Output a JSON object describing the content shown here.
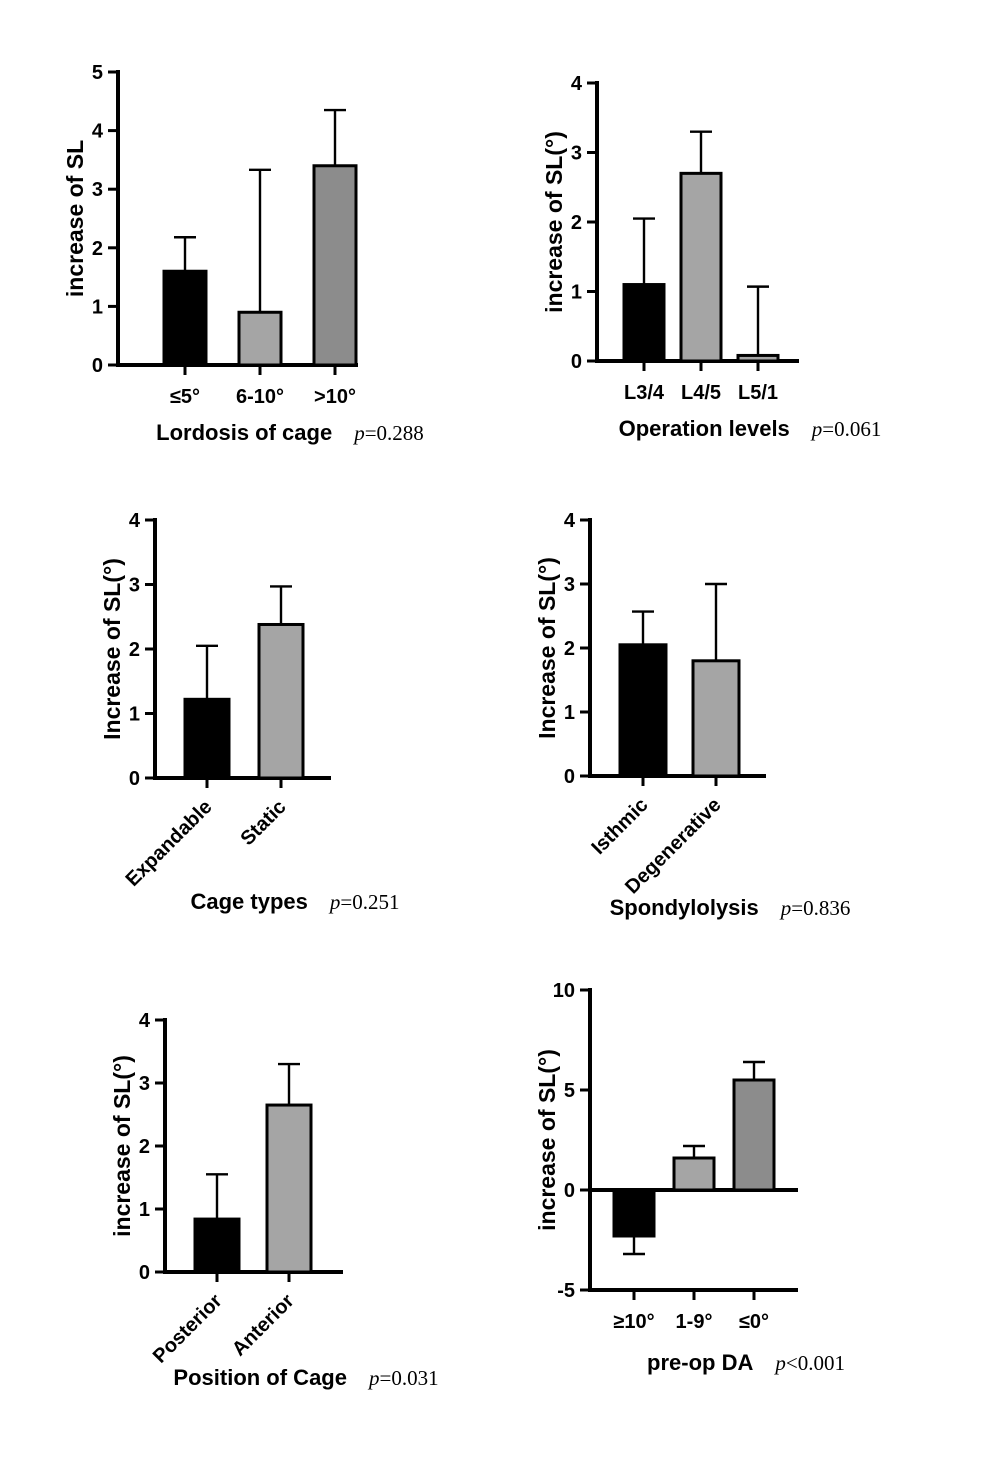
{
  "page": {
    "background": "#ffffff",
    "bar_outline_color": "#000000",
    "axis_color": "#000000"
  },
  "chart_data": [
    {
      "type": "bar",
      "title": "Lordosis of cage",
      "p_label": "p=0.288",
      "ylabel": "increase of SL",
      "ylim": [
        0,
        5
      ],
      "yticks": [
        0,
        1,
        2,
        3,
        4,
        5
      ],
      "categories": [
        "≤5°",
        "6-10°",
        ">10°"
      ],
      "values": [
        1.6,
        0.9,
        3.4
      ],
      "errors": [
        0.58,
        2.43,
        0.95
      ],
      "colors": [
        "#000000",
        "#a5a5a5",
        "#8c8c8c"
      ],
      "rotated_labels": false,
      "grid": false,
      "legend": "none"
    },
    {
      "type": "bar",
      "title": "Operation levels",
      "p_label": "p=0.061",
      "ylabel": "increase of SL(°)",
      "ylim": [
        0,
        4
      ],
      "yticks": [
        0,
        1,
        2,
        3,
        4
      ],
      "categories": [
        "L3/4",
        "L4/5",
        "L5/1"
      ],
      "values": [
        1.1,
        2.7,
        0.08
      ],
      "errors": [
        0.95,
        0.6,
        0.99
      ],
      "colors": [
        "#000000",
        "#a5a5a5",
        "#a5a5a5"
      ],
      "rotated_labels": false,
      "grid": false,
      "legend": "none"
    },
    {
      "type": "bar",
      "title": "Cage types",
      "p_label": "p=0.251",
      "ylabel": "Increase of SL(°)",
      "ylim": [
        0,
        4
      ],
      "yticks": [
        0,
        1,
        2,
        3,
        4
      ],
      "categories": [
        "Expandable",
        "Static"
      ],
      "values": [
        1.22,
        2.38
      ],
      "errors": [
        0.83,
        0.59
      ],
      "colors": [
        "#000000",
        "#a5a5a5"
      ],
      "rotated_labels": true,
      "grid": false,
      "legend": "none"
    },
    {
      "type": "bar",
      "title": "Spondylolysis",
      "p_label": "p=0.836",
      "ylabel": "Increase of SL(°)",
      "ylim": [
        0,
        4
      ],
      "yticks": [
        0,
        1,
        2,
        3,
        4
      ],
      "categories": [
        "Isthmic",
        "Degenerative"
      ],
      "values": [
        2.05,
        1.8
      ],
      "errors": [
        0.52,
        1.2
      ],
      "colors": [
        "#000000",
        "#a5a5a5"
      ],
      "rotated_labels": true,
      "grid": false,
      "legend": "none"
    },
    {
      "type": "bar",
      "title": "Position of Cage",
      "p_label": "p=0.031",
      "ylabel": "increase of SL(°)",
      "ylim": [
        0,
        4
      ],
      "yticks": [
        0,
        1,
        2,
        3,
        4
      ],
      "categories": [
        "Posterior",
        "Anterior"
      ],
      "values": [
        0.84,
        2.65
      ],
      "errors": [
        0.71,
        0.65
      ],
      "colors": [
        "#000000",
        "#a5a5a5"
      ],
      "rotated_labels": true,
      "grid": false,
      "legend": "none"
    },
    {
      "type": "bar",
      "title": "pre-op DA",
      "p_label": "p<0.001",
      "ylabel": "increase of SL(°)",
      "ylim": [
        -5,
        10
      ],
      "yticks": [
        -5,
        0,
        5,
        10
      ],
      "categories": [
        "≥10°",
        "1-9°",
        "≤0°"
      ],
      "values": [
        -2.3,
        1.6,
        5.5
      ],
      "errors": [
        0.9,
        0.6,
        0.9
      ],
      "colors": [
        "#000000",
        "#a5a5a5",
        "#8c8c8c"
      ],
      "rotated_labels": false,
      "grid": false,
      "legend": "none"
    }
  ]
}
